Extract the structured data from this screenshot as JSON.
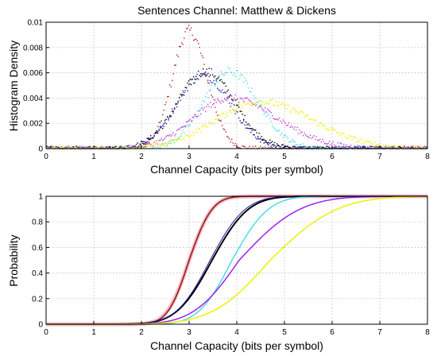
{
  "chart_data": [
    {
      "type": "scatter",
      "title": "Sentences Channel: Matthew & Dickens",
      "xlabel": "Channel Capacity (bits per symbol)",
      "ylabel": "Histogram Density",
      "xlim": [
        0,
        8
      ],
      "ylim": [
        0,
        0.01
      ],
      "grid": true,
      "xticks": [
        "0",
        "1",
        "2",
        "3",
        "4",
        "5",
        "6",
        "7",
        "8"
      ],
      "yticks": [
        "0",
        "0.002",
        "0.004",
        "0.006",
        "0.008",
        "0.01"
      ],
      "series": [
        {
          "color": "#b22222",
          "peak_x": 3.0,
          "peak_y": 0.0093,
          "spread_left": 0.35,
          "spread_right": 0.38
        },
        {
          "color": "#000000",
          "peak_x": 3.35,
          "peak_y": 0.0061,
          "spread_left": 0.58,
          "spread_right": 0.6
        },
        {
          "color": "#1a1aa8",
          "peak_x": 3.3,
          "peak_y": 0.0058,
          "spread_left": 0.56,
          "spread_right": 0.58
        },
        {
          "color": "#4fd9e8",
          "peak_x": 3.85,
          "peak_y": 0.0061,
          "spread_left": 0.55,
          "spread_right": 0.6
        },
        {
          "color": "#c23cd6",
          "peak_x": 3.85,
          "peak_y": 0.004,
          "spread_left": 0.75,
          "spread_right": 1.0
        },
        {
          "color": "#f0f000",
          "peak_x": 4.5,
          "peak_y": 0.0037,
          "spread_left": 0.95,
          "spread_right": 1.1
        }
      ]
    },
    {
      "type": "line",
      "xlabel": "Channel Capacity (bits per symbol)",
      "ylabel": "Probability",
      "xlim": [
        0,
        8
      ],
      "ylim": [
        0,
        1
      ],
      "grid": true,
      "xticks": [
        "0",
        "1",
        "2",
        "3",
        "4",
        "5",
        "6",
        "7",
        "8"
      ],
      "yticks": [
        "0",
        "0.2",
        "0.4",
        "0.6",
        "0.8",
        "1"
      ],
      "series": [
        {
          "color": "#f7b8c8",
          "width": 5,
          "median_x": 3.0,
          "spread_left": 0.36,
          "spread_right": 0.38
        },
        {
          "color": "#8b1a0e",
          "width": 1.5,
          "median_x": 3.0,
          "spread_left": 0.35,
          "spread_right": 0.38
        },
        {
          "color": "#000000",
          "width": 2,
          "median_x": 3.48,
          "spread_left": 0.58,
          "spread_right": 0.6
        },
        {
          "color": "#1a1aa8",
          "width": 1,
          "median_x": 3.44,
          "spread_left": 0.56,
          "spread_right": 0.58
        },
        {
          "color": "#4fd9e8",
          "width": 1.5,
          "median_x": 3.9,
          "spread_left": 0.55,
          "spread_right": 0.6
        },
        {
          "color": "#a020f0",
          "width": 1.5,
          "median_x": 4.05,
          "spread_left": 0.75,
          "spread_right": 1.0
        },
        {
          "color": "#f0f000",
          "width": 1.5,
          "median_x": 4.7,
          "spread_left": 0.95,
          "spread_right": 1.1
        }
      ]
    }
  ]
}
